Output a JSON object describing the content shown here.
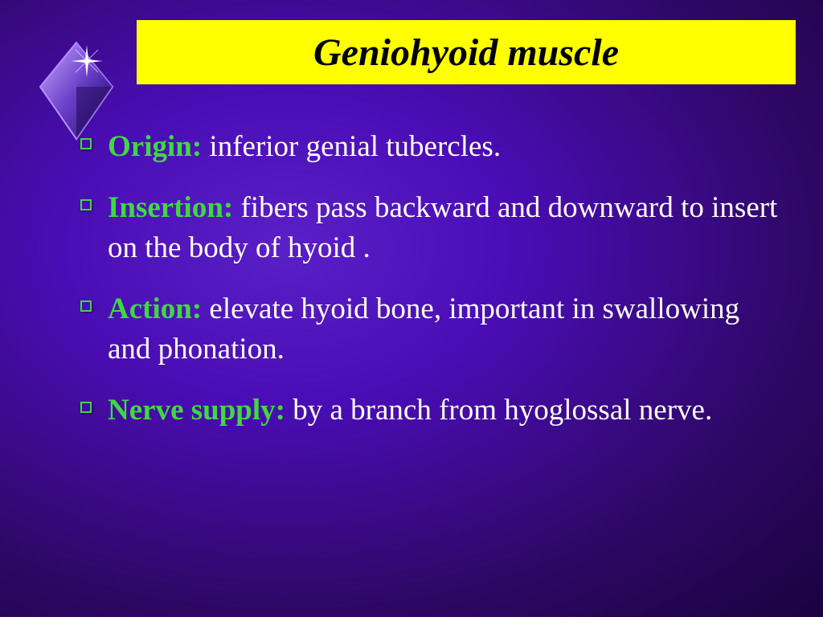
{
  "title": "Geniohyoid muscle",
  "title_bar_color": "#ffff00",
  "title_text_color": "#000000",
  "background_gradient": [
    "#5a1fc7",
    "#4a0db5",
    "#2e0764",
    "#1a0240"
  ],
  "label_color": "#3fd93f",
  "body_text_color": "#ffffff",
  "bullet_border_color": "#3fd93f",
  "items": [
    {
      "label": "Origin:",
      "text": " inferior genial tubercles."
    },
    {
      "label": "Insertion:",
      "text": " fibers pass backward and downward to insert on the body of hyoid ."
    },
    {
      "label": "Action:",
      "text": " elevate hyoid bone, important in swallowing and phonation."
    },
    {
      "label": "Nerve supply:",
      "text": " by a branch from hyoglossal nerve."
    }
  ],
  "font_family": "Palatino Linotype, Book Antiqua, Palatino, serif",
  "title_fontsize": 48,
  "body_fontsize": 37
}
